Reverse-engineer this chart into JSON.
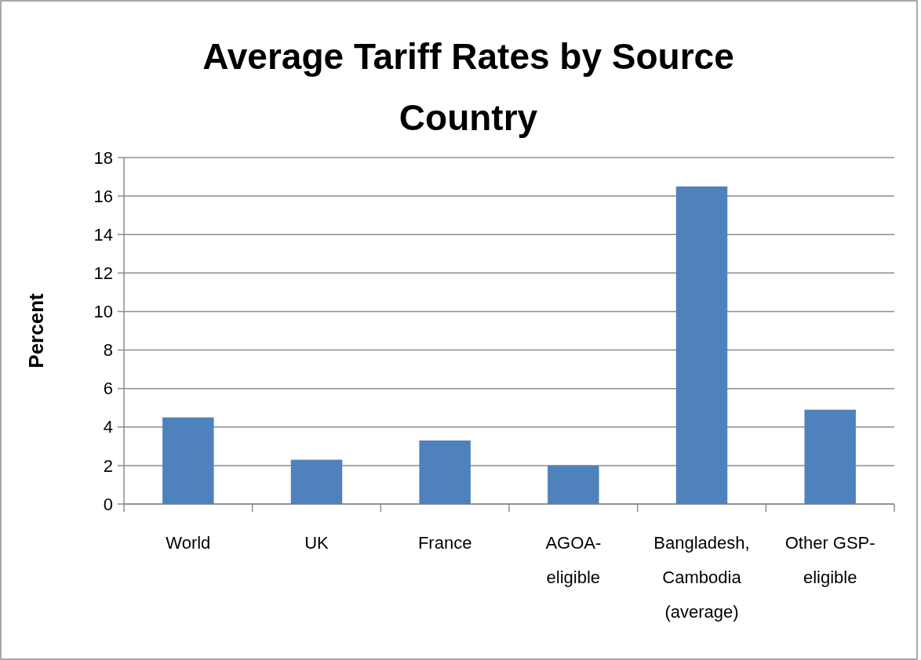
{
  "chart_data": {
    "type": "bar",
    "title": "Average Tariff Rates by Source Country",
    "ylabel": "Percent",
    "categories": [
      "World",
      "UK",
      "France",
      "AGOA-eligible",
      "Bangladesh, Cambodia (average)",
      "Other GSP-eligible"
    ],
    "values": [
      4.5,
      2.3,
      3.3,
      2.0,
      16.5,
      4.9
    ],
    "color": "#4f81bd",
    "ylim": [
      0,
      18
    ],
    "yticks": [
      0,
      2,
      4,
      6,
      8,
      10,
      12,
      14,
      16,
      18
    ],
    "grid": "y"
  }
}
